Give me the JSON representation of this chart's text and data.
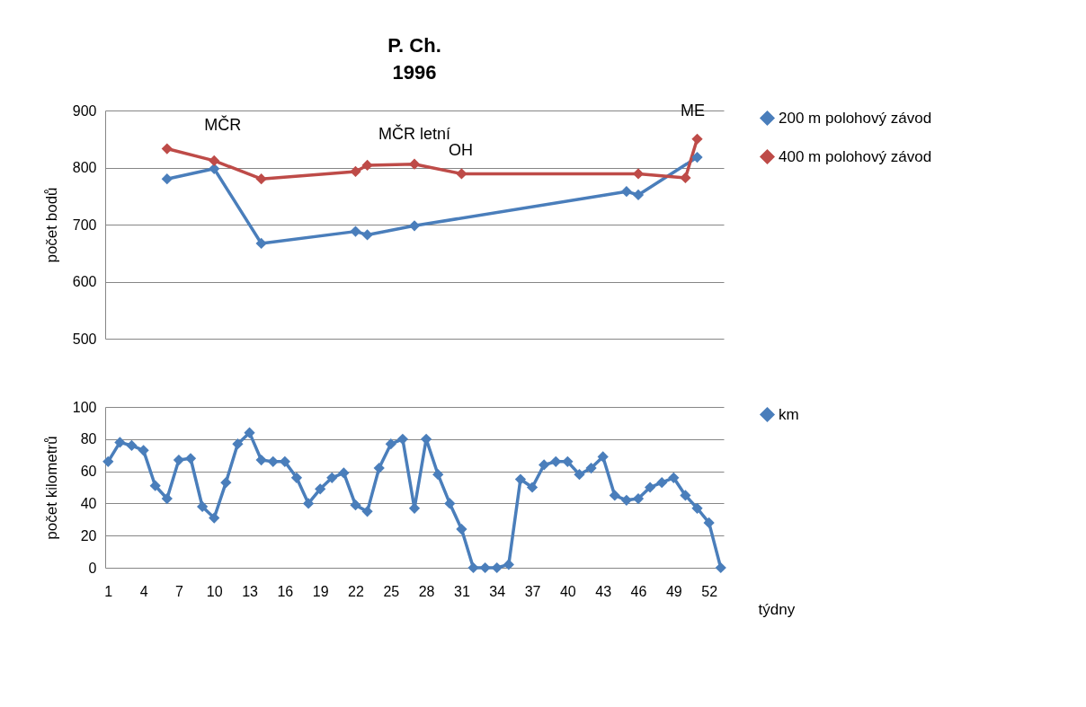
{
  "chart_data": [
    {
      "type": "line",
      "title": "P. Ch.",
      "subtitle": "1996",
      "ylabel": "počet bodů",
      "ylim": [
        500,
        900
      ],
      "yticks": [
        500,
        600,
        700,
        800,
        900
      ],
      "tick_labels": "y",
      "grid": "y",
      "legend": "right",
      "marker": "diamond",
      "line_style": "solid",
      "categories": [
        "1",
        null,
        null,
        "4",
        null,
        null,
        "7",
        null,
        null,
        "10",
        null,
        null,
        "13",
        null,
        null,
        "16",
        null,
        null,
        "19",
        null,
        null,
        "22",
        null,
        null,
        "25",
        null,
        null,
        "28",
        null,
        null,
        "31",
        null,
        null,
        "34",
        null,
        null,
        "37",
        null,
        null,
        "40",
        null,
        null,
        "43",
        null,
        null,
        "46",
        null,
        null,
        "49",
        null,
        null,
        "52",
        null
      ],
      "series": [
        {
          "name": "200 m polohový závod",
          "color": "#4a7ebb",
          "values": [
            null,
            null,
            null,
            null,
            null,
            780,
            null,
            null,
            null,
            798,
            null,
            null,
            null,
            667,
            null,
            null,
            null,
            null,
            null,
            null,
            null,
            688,
            682,
            null,
            null,
            null,
            698,
            null,
            null,
            null,
            null,
            null,
            null,
            null,
            null,
            null,
            null,
            null,
            null,
            null,
            null,
            null,
            null,
            null,
            758,
            752,
            null,
            null,
            null,
            null,
            818,
            null,
            null
          ]
        },
        {
          "name": "400 m polohový závod",
          "color": "#be4b48",
          "values": [
            null,
            null,
            null,
            null,
            null,
            833,
            null,
            null,
            null,
            812,
            null,
            null,
            null,
            780,
            null,
            null,
            null,
            null,
            null,
            null,
            null,
            793,
            804,
            null,
            null,
            null,
            806,
            null,
            null,
            null,
            789,
            null,
            null,
            null,
            null,
            null,
            null,
            null,
            null,
            null,
            null,
            null,
            null,
            null,
            null,
            789,
            null,
            null,
            null,
            782,
            850,
            null,
            null
          ]
        }
      ],
      "annotations": [
        "MČR",
        "MČR letní",
        "OH",
        "ME"
      ]
    },
    {
      "type": "line",
      "xlabel": "týdny",
      "ylabel": "počet kilometrů",
      "ylim": [
        0,
        100
      ],
      "yticks": [
        0,
        20,
        40,
        60,
        80,
        100
      ],
      "grid": "y",
      "legend": "right",
      "marker": "diamond",
      "line_style": "solid",
      "categories": [
        "1",
        null,
        null,
        "4",
        null,
        null,
        "7",
        null,
        null,
        "10",
        null,
        null,
        "13",
        null,
        null,
        "16",
        null,
        null,
        "19",
        null,
        null,
        "22",
        null,
        null,
        "25",
        null,
        null,
        "28",
        null,
        null,
        "31",
        null,
        null,
        "34",
        null,
        null,
        "37",
        null,
        null,
        "40",
        null,
        null,
        "43",
        null,
        null,
        "46",
        null,
        null,
        "49",
        null,
        null,
        "52",
        null
      ],
      "series": [
        {
          "name": "km",
          "color": "#4a7ebb",
          "values": [
            66,
            78,
            76,
            73,
            51,
            43,
            67,
            68,
            38,
            31,
            53,
            77,
            84,
            67,
            66,
            66,
            56,
            40,
            49,
            56,
            59,
            39,
            35,
            62,
            77,
            80,
            37,
            80,
            58,
            40,
            24,
            0,
            0,
            0,
            2,
            55,
            50,
            64,
            66,
            66,
            58,
            62,
            69,
            45,
            42,
            43,
            50,
            53,
            56,
            45,
            37,
            28,
            0
          ]
        }
      ]
    }
  ]
}
